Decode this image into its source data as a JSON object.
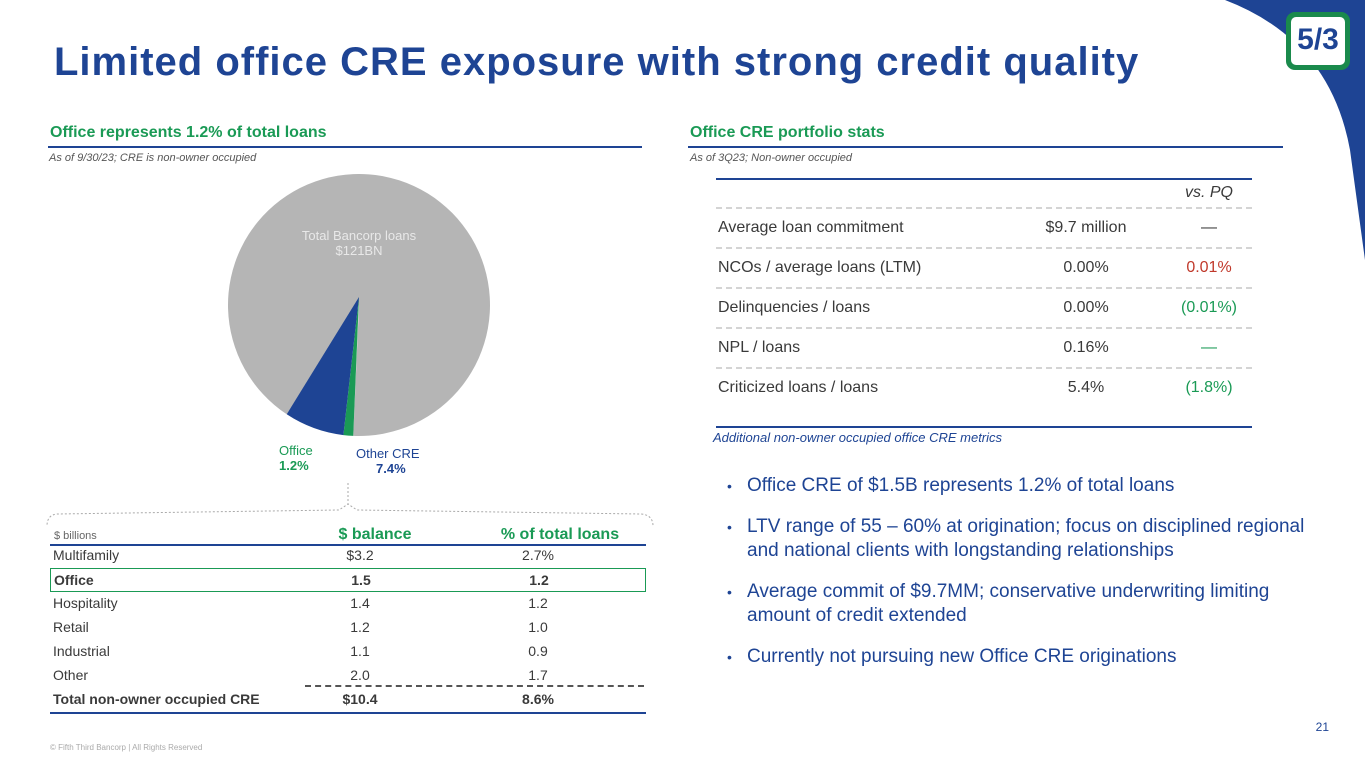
{
  "title": "Limited office CRE exposure with strong credit quality",
  "logo_text": "5/3",
  "left": {
    "header": "Office represents 1.2% of total loans",
    "note": "As of 9/30/23; CRE is non-owner occupied",
    "pie": {
      "total_label": "Total Bancorp loans",
      "total_value": "$121BN",
      "office_label": "Office",
      "office_value": "1.2%",
      "other_label": "Other CRE",
      "other_value": "7.4%"
    },
    "table": {
      "units": "$ billions",
      "col_balance": "$ balance",
      "col_pct": "% of total loans",
      "rows": [
        {
          "cat": "Multifamily",
          "bal": "$3.2",
          "pct": "2.7%"
        },
        {
          "cat": "Office",
          "bal": "1.5",
          "pct": "1.2"
        },
        {
          "cat": "Hospitality",
          "bal": "1.4",
          "pct": "1.2"
        },
        {
          "cat": "Retail",
          "bal": "1.2",
          "pct": "1.0"
        },
        {
          "cat": "Industrial",
          "bal": "1.1",
          "pct": "0.9"
        },
        {
          "cat": "Other",
          "bal": "2.0",
          "pct": "1.7"
        },
        {
          "cat": "Total non-owner occupied CRE",
          "bal": "$10.4",
          "pct": "8.6%"
        }
      ]
    }
  },
  "right": {
    "header": "Office CRE portfolio stats",
    "note": "As of 3Q23; Non-owner occupied",
    "col_vspq": "vs. PQ",
    "rows": [
      {
        "metric": "Average loan commitment",
        "value": "$9.7 million",
        "vspq": "—"
      },
      {
        "metric": "NCOs / average loans (LTM)",
        "value": "0.00%",
        "vspq": "0.01%"
      },
      {
        "metric": "Delinquencies / loans",
        "value": "0.00%",
        "vspq": "(0.01%)"
      },
      {
        "metric": "NPL / loans",
        "value": "0.16%",
        "vspq": "—"
      },
      {
        "metric": "Criticized loans / loans",
        "value": "5.4%",
        "vspq": "(1.8%)"
      }
    ],
    "table_note": "Additional non-owner occupied office CRE metrics",
    "bullets": [
      "Office CRE of $1.5B represents 1.2% of total loans",
      "LTV range of 55 – 60% at origination; focus on disciplined regional and national clients with longstanding relationships",
      "Average commit of $9.7MM; conservative underwriting limiting amount of credit extended",
      "Currently not pursuing new Office CRE originations"
    ],
    "bullet_mark": "•"
  },
  "colors": {
    "brand_blue": "#1e4494",
    "brand_green": "#1a9a55",
    "pie_gray": "#b5b5b5",
    "negative_red": "#c0392b"
  },
  "chart_data": {
    "type": "pie",
    "title": "",
    "slices": [
      {
        "name": "Total Bancorp loans",
        "value": 91.4
      },
      {
        "name": "Office",
        "value": 1.2
      },
      {
        "name": "Other CRE",
        "value": 7.4
      }
    ]
  },
  "footer": "© Fifth Third Bancorp | All Rights Reserved",
  "page_number": "21"
}
